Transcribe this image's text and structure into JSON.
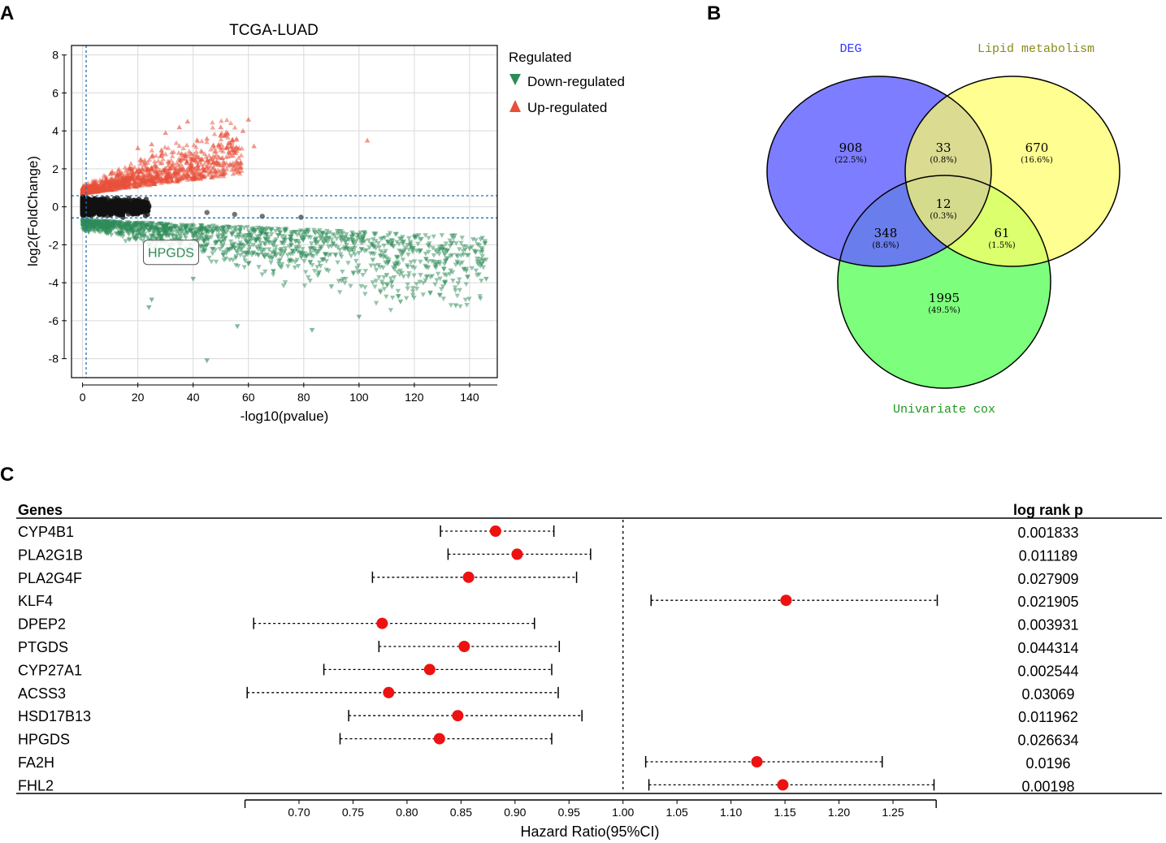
{
  "panels": {
    "a": "A",
    "b": "B",
    "c": "C"
  },
  "colors": {
    "up": "#e8503a",
    "down": "#2e8b57",
    "ns": "#111111",
    "hr_point": "#ee1111",
    "deg": "#6666ff",
    "lipid": "#ffff66",
    "cox": "#66ff66"
  },
  "chart_data": [
    {
      "type": "scatter",
      "title": "TCGA-LUAD",
      "xlabel": "-log10(pvalue)",
      "ylabel": "log2(FoldChange)",
      "xlim": [
        -4,
        150
      ],
      "ylim": [
        -9,
        8.5
      ],
      "xticks": [
        0,
        20,
        40,
        60,
        80,
        100,
        120,
        140
      ],
      "yticks": [
        -8,
        -6,
        -4,
        -2,
        0,
        2,
        4,
        6,
        8
      ],
      "grid": true,
      "thresholds": {
        "x": 1.3,
        "y_up": 0.585,
        "y_down": -0.585
      },
      "legend": {
        "title": "Regulated",
        "position": "right",
        "entries": [
          {
            "label": "Down-regulated",
            "marker": "triangle-down",
            "color": "#2e8b57"
          },
          {
            "label": "Up-regulated",
            "marker": "triangle-up",
            "color": "#e8503a"
          }
        ]
      },
      "annotation": {
        "label": "HPGDS",
        "x": 32,
        "y": -2.4
      },
      "series": [
        {
          "name": "Up-regulated",
          "points": [
            [
              103,
              3.5
            ],
            [
              60,
              4.6
            ],
            [
              50,
              4.2
            ],
            [
              38,
              4.5
            ],
            [
              35,
              4.2
            ],
            [
              50,
              3.8
            ],
            [
              58,
              4.0
            ],
            [
              55,
              3.0
            ],
            [
              62,
              3.2
            ],
            [
              45,
              3.6
            ],
            [
              30,
              3.9
            ],
            [
              25,
              3.3
            ],
            [
              20,
              3.1
            ]
          ]
        },
        {
          "name": "Down-regulated",
          "points": [
            [
              45,
              -8.1
            ],
            [
              56,
              -6.3
            ],
            [
              83,
              -6.5
            ],
            [
              135,
              -5.2
            ],
            [
              100,
              -5.8
            ],
            [
              115,
              -5.0
            ],
            [
              146,
              -3.8
            ],
            [
              140,
              -2.2
            ],
            [
              125,
              -3.2
            ],
            [
              110,
              -3.6
            ],
            [
              90,
              -4.2
            ],
            [
              24,
              -5.3
            ],
            [
              25,
              -4.9
            ],
            [
              40,
              -3.8
            ],
            [
              60,
              -3.0
            ],
            [
              75,
              -2.8
            ],
            [
              95,
              -1.6
            ],
            [
              105,
              -2.8
            ],
            [
              120,
              -1.6
            ],
            [
              132,
              -2.3
            ]
          ]
        },
        {
          "name": "Not significant",
          "points": [
            [
              79,
              -0.55
            ],
            [
              65,
              -0.5
            ],
            [
              55,
              -0.4
            ],
            [
              45,
              -0.3
            ]
          ]
        }
      ]
    },
    {
      "type": "venn",
      "sets": [
        "DEG",
        "Lipid metabolism",
        "Univariate cox"
      ],
      "regions": [
        {
          "sets": [
            "DEG"
          ],
          "count": "908",
          "pct": "(22.5%)"
        },
        {
          "sets": [
            "DEG",
            "Lipid metabolism"
          ],
          "count": "33",
          "pct": "(0.8%)"
        },
        {
          "sets": [
            "Lipid metabolism"
          ],
          "count": "670",
          "pct": "(16.6%)"
        },
        {
          "sets": [
            "DEG",
            "Lipid metabolism",
            "Univariate cox"
          ],
          "count": "12",
          "pct": "(0.3%)"
        },
        {
          "sets": [
            "DEG",
            "Univariate cox"
          ],
          "count": "348",
          "pct": "(8.6%)"
        },
        {
          "sets": [
            "Lipid metabolism",
            "Univariate cox"
          ],
          "count": "61",
          "pct": "(1.5%)"
        },
        {
          "sets": [
            "Univariate cox"
          ],
          "count": "1995",
          "pct": "(49.5%)"
        }
      ]
    },
    {
      "type": "forest",
      "col_genes": "Genes",
      "col_p": "log rank p",
      "xlabel": "Hazard Ratio(95%CI)",
      "xlim": [
        0.65,
        1.29
      ],
      "xticks": [
        0.7,
        0.75,
        0.8,
        0.85,
        0.9,
        0.95,
        1.0,
        1.05,
        1.1,
        1.15,
        1.2,
        1.25
      ],
      "xtick_labels": [
        "0.70",
        "0.75",
        "0.80",
        "0.85",
        "0.90",
        "0.95",
        "1.00",
        "1.05",
        "1.10",
        "1.15",
        "1.20",
        "1.25"
      ],
      "reference": 1.0,
      "rows": [
        {
          "gene": "CYP4B1",
          "hr": 0.882,
          "lo": 0.831,
          "hi": 0.936,
          "p": "0.001833"
        },
        {
          "gene": "PLA2G1B",
          "hr": 0.902,
          "lo": 0.838,
          "hi": 0.97,
          "p": "0.011189"
        },
        {
          "gene": "PLA2G4F",
          "hr": 0.857,
          "lo": 0.768,
          "hi": 0.957,
          "p": "0.027909"
        },
        {
          "gene": "KLF4",
          "hr": 1.151,
          "lo": 1.026,
          "hi": 1.291,
          "p": "0.021905"
        },
        {
          "gene": "DPEP2",
          "hr": 0.777,
          "lo": 0.658,
          "hi": 0.918,
          "p": "0.003931"
        },
        {
          "gene": "PTGDS",
          "hr": 0.853,
          "lo": 0.774,
          "hi": 0.941,
          "p": "0.044314"
        },
        {
          "gene": "CYP27A1",
          "hr": 0.821,
          "lo": 0.723,
          "hi": 0.934,
          "p": "0.002544"
        },
        {
          "gene": "ACSS3",
          "hr": 0.783,
          "lo": 0.652,
          "hi": 0.94,
          "p": "0.03069"
        },
        {
          "gene": "HSD17B13",
          "hr": 0.847,
          "lo": 0.746,
          "hi": 0.962,
          "p": "0.011962"
        },
        {
          "gene": "HPGDS",
          "hr": 0.83,
          "lo": 0.738,
          "hi": 0.934,
          "p": "0.026634"
        },
        {
          "gene": "FA2H",
          "hr": 1.124,
          "lo": 1.021,
          "hi": 1.24,
          "p": "0.0196"
        },
        {
          "gene": "FHL2",
          "hr": 1.148,
          "lo": 1.024,
          "hi": 1.288,
          "p": "0.00198"
        }
      ]
    }
  ]
}
